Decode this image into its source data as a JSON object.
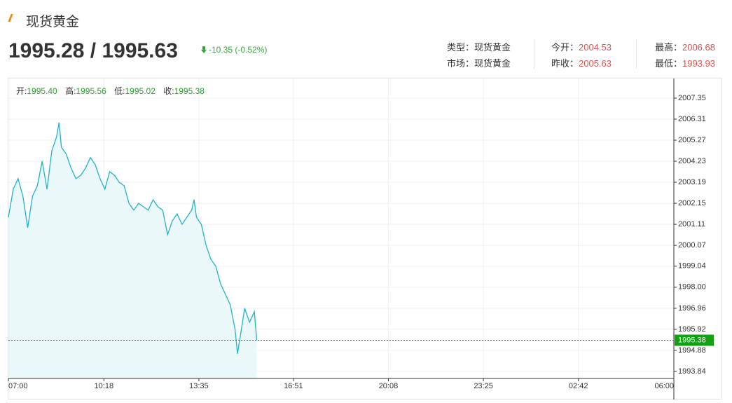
{
  "header": {
    "title": "现货黄金",
    "price": "1995.28 / 1995.63",
    "change": "-10.35 (-0.52%)",
    "info": [
      [
        {
          "label": "类型：",
          "value": "现货黄金"
        },
        {
          "label": "市场：",
          "value": "现货黄金"
        }
      ],
      [
        {
          "label": "今开：",
          "value": "2004.53"
        },
        {
          "label": "昨收：",
          "value": "2005.63"
        }
      ],
      [
        {
          "label": "最高：",
          "value": "2006.68"
        },
        {
          "label": "最低：",
          "value": "1993.93"
        }
      ]
    ]
  },
  "chart_data": {
    "type": "line",
    "ohlc": [
      {
        "label": "开:",
        "value": "1995.40"
      },
      {
        "label": "高:",
        "value": "1995.56"
      },
      {
        "label": "低:",
        "value": "1995.02"
      },
      {
        "label": "收:",
        "value": "1995.38"
      }
    ],
    "x": [
      "07:00",
      "07:10",
      "07:20",
      "07:30",
      "07:40",
      "07:50",
      "08:00",
      "08:10",
      "08:20",
      "08:30",
      "08:40",
      "08:45",
      "08:50",
      "09:00",
      "09:10",
      "09:20",
      "09:30",
      "09:40",
      "09:50",
      "10:00",
      "10:10",
      "10:20",
      "10:30",
      "10:40",
      "10:50",
      "11:00",
      "11:10",
      "11:20",
      "11:30",
      "11:40",
      "11:50",
      "12:00",
      "12:10",
      "12:20",
      "12:30",
      "12:40",
      "12:50",
      "13:00",
      "13:10",
      "13:20",
      "13:25",
      "13:30",
      "13:40",
      "13:50",
      "14:00",
      "14:10",
      "14:20",
      "14:30",
      "14:40",
      "14:50",
      "14:55",
      "15:00",
      "15:10",
      "15:20",
      "15:30",
      "15:35"
    ],
    "series": [
      {
        "name": "现货黄金",
        "color": "#22b3c7",
        "values": [
          2001.46,
          2002.85,
          2003.37,
          2002.5,
          2000.94,
          2002.5,
          2003.02,
          2004.23,
          2002.85,
          2004.75,
          2005.44,
          2006.14,
          2004.92,
          2004.58,
          2003.89,
          2003.37,
          2003.54,
          2003.89,
          2004.41,
          2004.06,
          2003.37,
          2002.85,
          2003.71,
          2003.54,
          2003.19,
          2003.02,
          2002.15,
          2001.81,
          2002.15,
          2001.98,
          2001.81,
          2002.33,
          2001.98,
          2001.81,
          2000.6,
          2001.29,
          2001.63,
          2001.11,
          2001.46,
          2001.81,
          2002.33,
          2001.46,
          2001.11,
          2000.07,
          1999.38,
          1999.04,
          1998.17,
          1997.65,
          1997.13,
          1995.92,
          1994.71,
          1995.44,
          1996.96,
          1996.27,
          1996.79,
          1995.38
        ]
      }
    ],
    "last_price": 1995.38,
    "xlim": [
      "07:00",
      "06:00"
    ],
    "xticks": [
      "07:00",
      "10:18",
      "13:35",
      "16:51",
      "20:08",
      "23:25",
      "02:42",
      "06:00"
    ],
    "ylim": [
      1993.49,
      2008.32
    ],
    "yticks": [
      2007.35,
      2006.31,
      2005.27,
      2004.23,
      2003.19,
      2002.15,
      2001.11,
      2000.07,
      1999.04,
      {
        "value": 1998,
        "label": "1998.00"
      },
      1996.96,
      1995.92,
      1994.88,
      1993.84
    ],
    "grid": true
  }
}
